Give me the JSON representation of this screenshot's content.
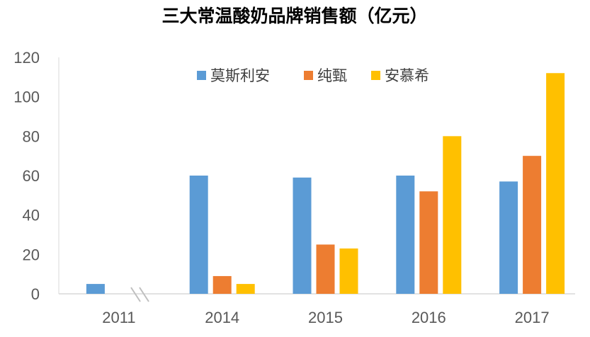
{
  "chart_data": {
    "type": "bar",
    "title": "三大常温酸奶品牌销售额（亿元）",
    "xlabel": "",
    "ylabel": "",
    "categories": [
      "2011",
      "2014",
      "2015",
      "2016",
      "2017"
    ],
    "series": [
      {
        "name": "莫斯利安",
        "color": "#5B9BD5",
        "values": [
          5,
          60,
          59,
          60,
          57
        ]
      },
      {
        "name": "纯甄",
        "color": "#ED7D31",
        "values": [
          0,
          9,
          25,
          52,
          70
        ]
      },
      {
        "name": "安慕希",
        "color": "#FFC000",
        "values": [
          0,
          5,
          23,
          80,
          112
        ]
      }
    ],
    "ylim": [
      0,
      120
    ],
    "yticks": [
      0,
      20,
      40,
      60,
      80,
      100,
      120
    ],
    "grid": false,
    "legend": "top-center",
    "axis_break": "between-2011-and-2014"
  }
}
